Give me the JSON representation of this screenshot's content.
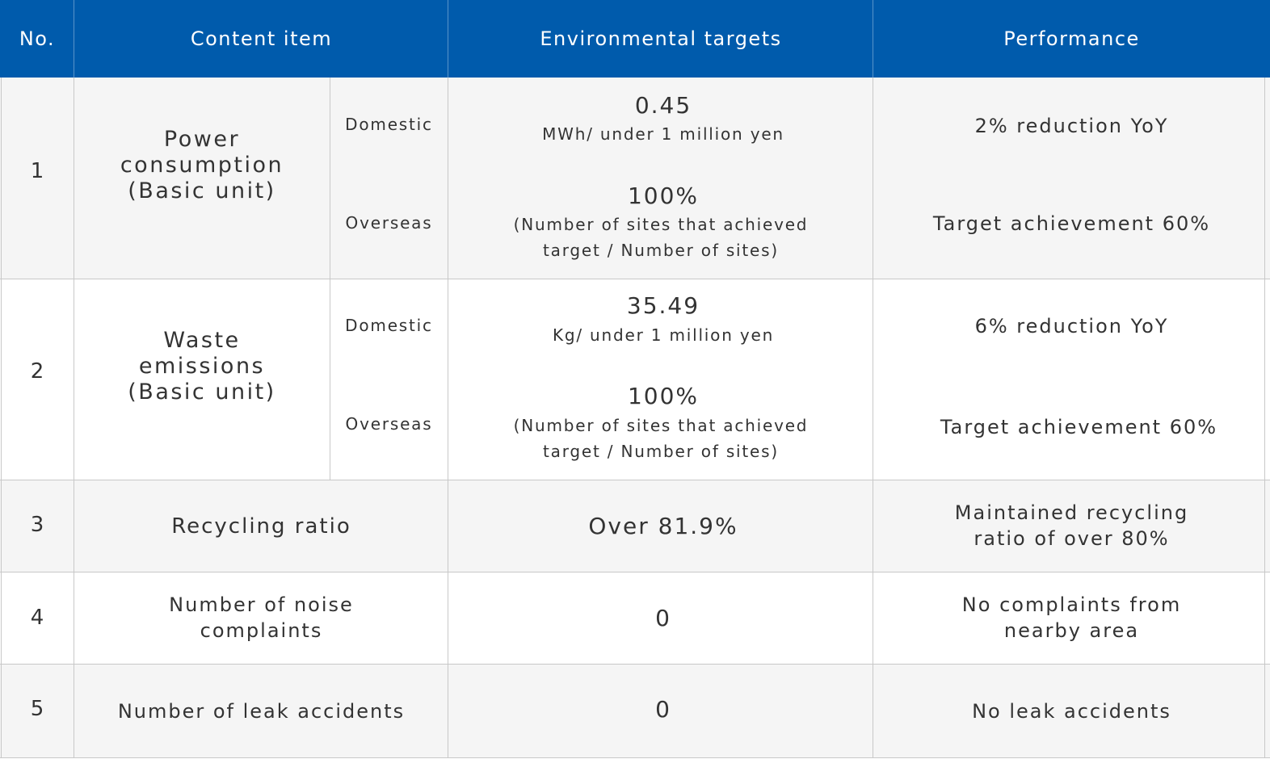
{
  "header": {
    "no": "No.",
    "content_item": "Content item",
    "environmental_targets": "Environmental targets",
    "performance": "Performance"
  },
  "rows": [
    {
      "no": "1",
      "item_line1": "Power",
      "item_line2": "consumption",
      "item_line3": "(Basic unit)",
      "domestic_label": "Domestic",
      "overseas_label": "Overseas",
      "domestic_target_value": "0.45",
      "domestic_target_unit": "MWh/ under 1 million yen",
      "overseas_target_value": "100%",
      "overseas_target_line1": "(Number of sites that achieved",
      "overseas_target_line2": "target / Number of sites)",
      "domestic_performance": "2% reduction YoY",
      "overseas_performance": "Target achievement 60%"
    },
    {
      "no": "2",
      "item_line1": "Waste",
      "item_line2": "emissions",
      "item_line3": "(Basic unit)",
      "domestic_label": "Domestic",
      "overseas_label": "Overseas",
      "domestic_target_value": "35.49",
      "domestic_target_unit": "Kg/ under 1 million yen",
      "overseas_target_value": "100%",
      "overseas_target_line1": "(Number of sites that achieved",
      "overseas_target_line2": "target / Number of sites)",
      "domestic_performance": "6% reduction YoY",
      "overseas_performance": "Target achievement 60%"
    },
    {
      "no": "3",
      "item": "Recycling ratio",
      "target": "Over 81.9%",
      "performance_line1": "Maintained recycling",
      "performance_line2": "ratio of over 80%"
    },
    {
      "no": "4",
      "item_line1": "Number of noise",
      "item_line2": "complaints",
      "target": "0",
      "performance_line1": "No complaints from",
      "performance_line2": "nearby area"
    },
    {
      "no": "5",
      "item": "Number of leak accidents",
      "target": "0",
      "performance": "No leak accidents"
    }
  ],
  "colors": {
    "header_bg": "#005bac",
    "header_text": "#ffffff",
    "row_shade": "#f5f5f5",
    "row_white": "#ffffff",
    "grid": "#c8c8c8"
  }
}
